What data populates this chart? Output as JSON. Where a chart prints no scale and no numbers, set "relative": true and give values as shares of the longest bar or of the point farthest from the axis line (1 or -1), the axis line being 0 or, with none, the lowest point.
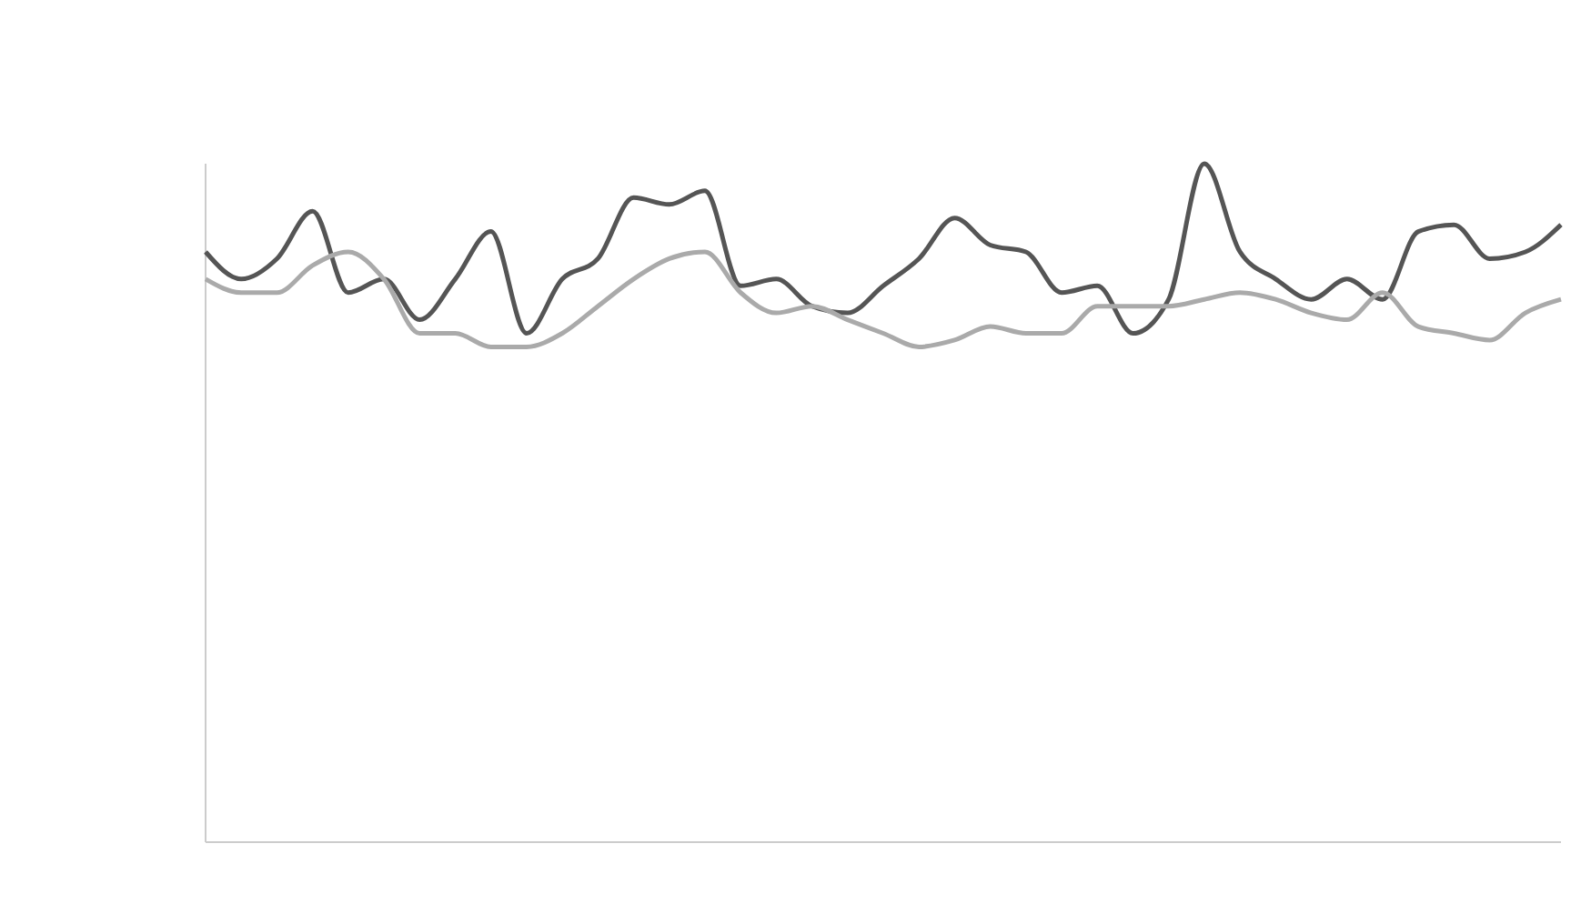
{
  "chart_data": {
    "type": "line",
    "relative": true,
    "categories": [
      null,
      null,
      null,
      null,
      null,
      null,
      null,
      null,
      null,
      null,
      null,
      null,
      null,
      null,
      null,
      null,
      null,
      null,
      null,
      null,
      null,
      null,
      null,
      null,
      null,
      null,
      null,
      null,
      null,
      null,
      null,
      null,
      null,
      null,
      null,
      null,
      null,
      null,
      null
    ],
    "series": [
      {
        "color": "#555555",
        "values": [
          0.87,
          0.83,
          0.86,
          0.93,
          0.81,
          0.83,
          0.77,
          0.83,
          0.9,
          0.75,
          0.83,
          0.86,
          0.95,
          0.94,
          0.96,
          0.82,
          0.83,
          0.79,
          0.78,
          0.82,
          0.86,
          0.92,
          0.88,
          0.87,
          0.81,
          0.82,
          0.75,
          0.8,
          1,
          0.87,
          0.83,
          0.8,
          0.83,
          0.8,
          0.9,
          0.91,
          0.86,
          0.87,
          0.91
        ]
      },
      {
        "color": "#aaaaaa",
        "values": [
          0.83,
          0.81,
          0.81,
          0.85,
          0.87,
          0.83,
          0.75,
          0.75,
          0.73,
          0.73,
          0.75,
          0.79,
          0.83,
          0.86,
          0.87,
          0.81,
          0.78,
          0.79,
          0.77,
          0.75,
          0.73,
          0.74,
          0.76,
          0.75,
          0.75,
          0.79,
          0.79,
          0.79,
          0.8,
          0.81,
          0.8,
          0.78,
          0.77,
          0.81,
          0.76,
          0.75,
          0.74,
          0.78,
          0.8
        ]
      }
    ],
    "line_style": "solid",
    "marker": "none"
  }
}
